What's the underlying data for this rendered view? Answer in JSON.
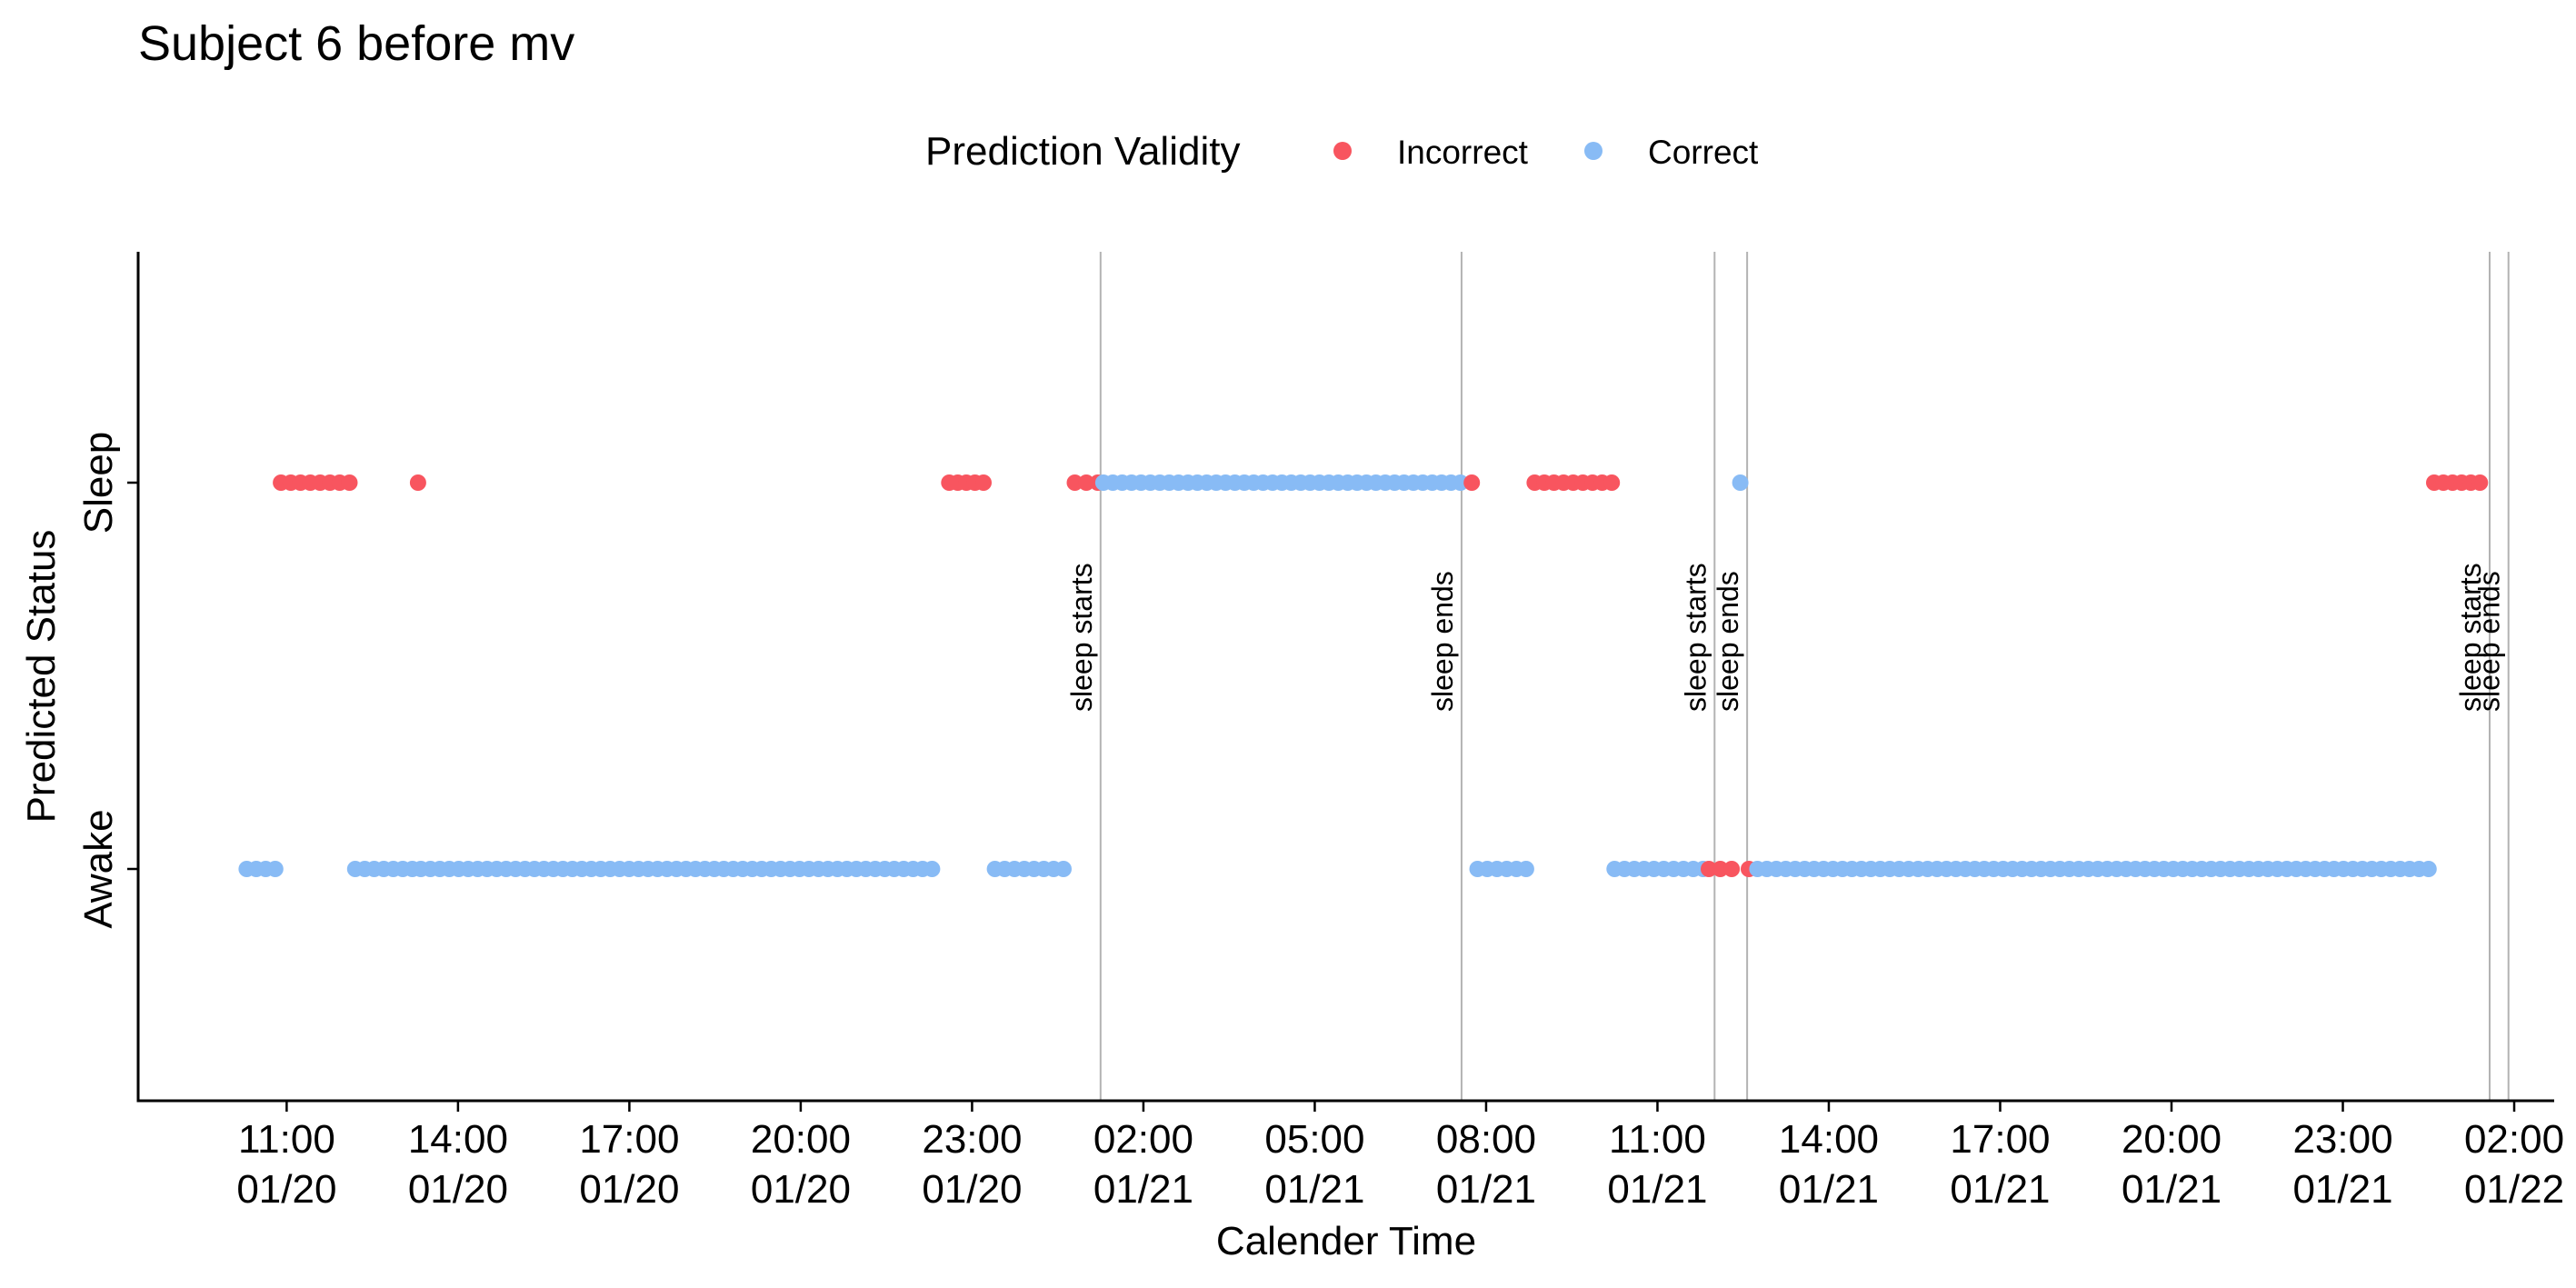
{
  "chart_data": {
    "type": "scatter",
    "title": "Subject 6  before mv",
    "xlabel": "Calender Time",
    "ylabel": "Predicted Status",
    "y_categories": [
      "Awake",
      "Sleep"
    ],
    "x_range_hours": [
      8.4,
      50.7
    ],
    "grid": false,
    "legend": {
      "title": "Prediction Validity",
      "position": "top",
      "entries": [
        {
          "label": "Incorrect",
          "color": "#F8555F"
        },
        {
          "label": "Correct",
          "color": "#88BBF5"
        }
      ]
    },
    "x_ticks": [
      {
        "hour": 11,
        "time": "11:00",
        "date": "01/20"
      },
      {
        "hour": 14,
        "time": "14:00",
        "date": "01/20"
      },
      {
        "hour": 17,
        "time": "17:00",
        "date": "01/20"
      },
      {
        "hour": 20,
        "time": "20:00",
        "date": "01/20"
      },
      {
        "hour": 23,
        "time": "23:00",
        "date": "01/20"
      },
      {
        "hour": 26,
        "time": "02:00",
        "date": "01/21"
      },
      {
        "hour": 29,
        "time": "05:00",
        "date": "01/21"
      },
      {
        "hour": 32,
        "time": "08:00",
        "date": "01/21"
      },
      {
        "hour": 35,
        "time": "11:00",
        "date": "01/21"
      },
      {
        "hour": 38,
        "time": "14:00",
        "date": "01/21"
      },
      {
        "hour": 41,
        "time": "17:00",
        "date": "01/21"
      },
      {
        "hour": 44,
        "time": "20:00",
        "date": "01/21"
      },
      {
        "hour": 47,
        "time": "23:00",
        "date": "01/21"
      },
      {
        "hour": 50,
        "time": "02:00",
        "date": "01/22"
      }
    ],
    "vlines": [
      {
        "hour": 25.25,
        "label": "sleep starts"
      },
      {
        "hour": 31.57,
        "label": "sleep ends"
      },
      {
        "hour": 36.0,
        "label": "sleep starts"
      },
      {
        "hour": 36.57,
        "label": "sleep ends"
      },
      {
        "hour": 49.57,
        "label": "sleep starts"
      },
      {
        "hour": 49.9,
        "label": "sleep ends"
      }
    ],
    "segments": [
      {
        "status": "Awake",
        "validity": "Correct",
        "start": 10.3,
        "end": 10.8
      },
      {
        "status": "Sleep",
        "validity": "Incorrect",
        "start": 10.9,
        "end": 12.1
      },
      {
        "status": "Awake",
        "validity": "Correct",
        "start": 12.2,
        "end": 13.2
      },
      {
        "status": "Sleep",
        "validity": "Incorrect",
        "start": 13.3,
        "end": 13.3
      },
      {
        "status": "Awake",
        "validity": "Correct",
        "start": 13.35,
        "end": 22.3
      },
      {
        "status": "Sleep",
        "validity": "Incorrect",
        "start": 22.6,
        "end": 23.2
      },
      {
        "status": "Awake",
        "validity": "Correct",
        "start": 23.4,
        "end": 24.6
      },
      {
        "status": "Sleep",
        "validity": "Incorrect",
        "start": 24.8,
        "end": 25.2
      },
      {
        "status": "Sleep",
        "validity": "Correct",
        "start": 25.3,
        "end": 31.55
      },
      {
        "status": "Sleep",
        "validity": "Incorrect",
        "start": 31.75,
        "end": 31.75
      },
      {
        "status": "Awake",
        "validity": "Correct",
        "start": 31.85,
        "end": 32.7
      },
      {
        "status": "Sleep",
        "validity": "Incorrect",
        "start": 32.85,
        "end": 34.2
      },
      {
        "status": "Awake",
        "validity": "Correct",
        "start": 34.25,
        "end": 35.8
      },
      {
        "status": "Awake",
        "validity": "Incorrect",
        "start": 35.9,
        "end": 36.3
      },
      {
        "status": "Sleep",
        "validity": "Correct",
        "start": 36.45,
        "end": 36.45
      },
      {
        "status": "Awake",
        "validity": "Incorrect",
        "start": 36.6,
        "end": 36.6
      },
      {
        "status": "Awake",
        "validity": "Correct",
        "start": 36.75,
        "end": 48.5
      },
      {
        "status": "Sleep",
        "validity": "Incorrect",
        "start": 48.6,
        "end": 49.4
      }
    ],
    "point_spacing_hours": 0.16666
  }
}
